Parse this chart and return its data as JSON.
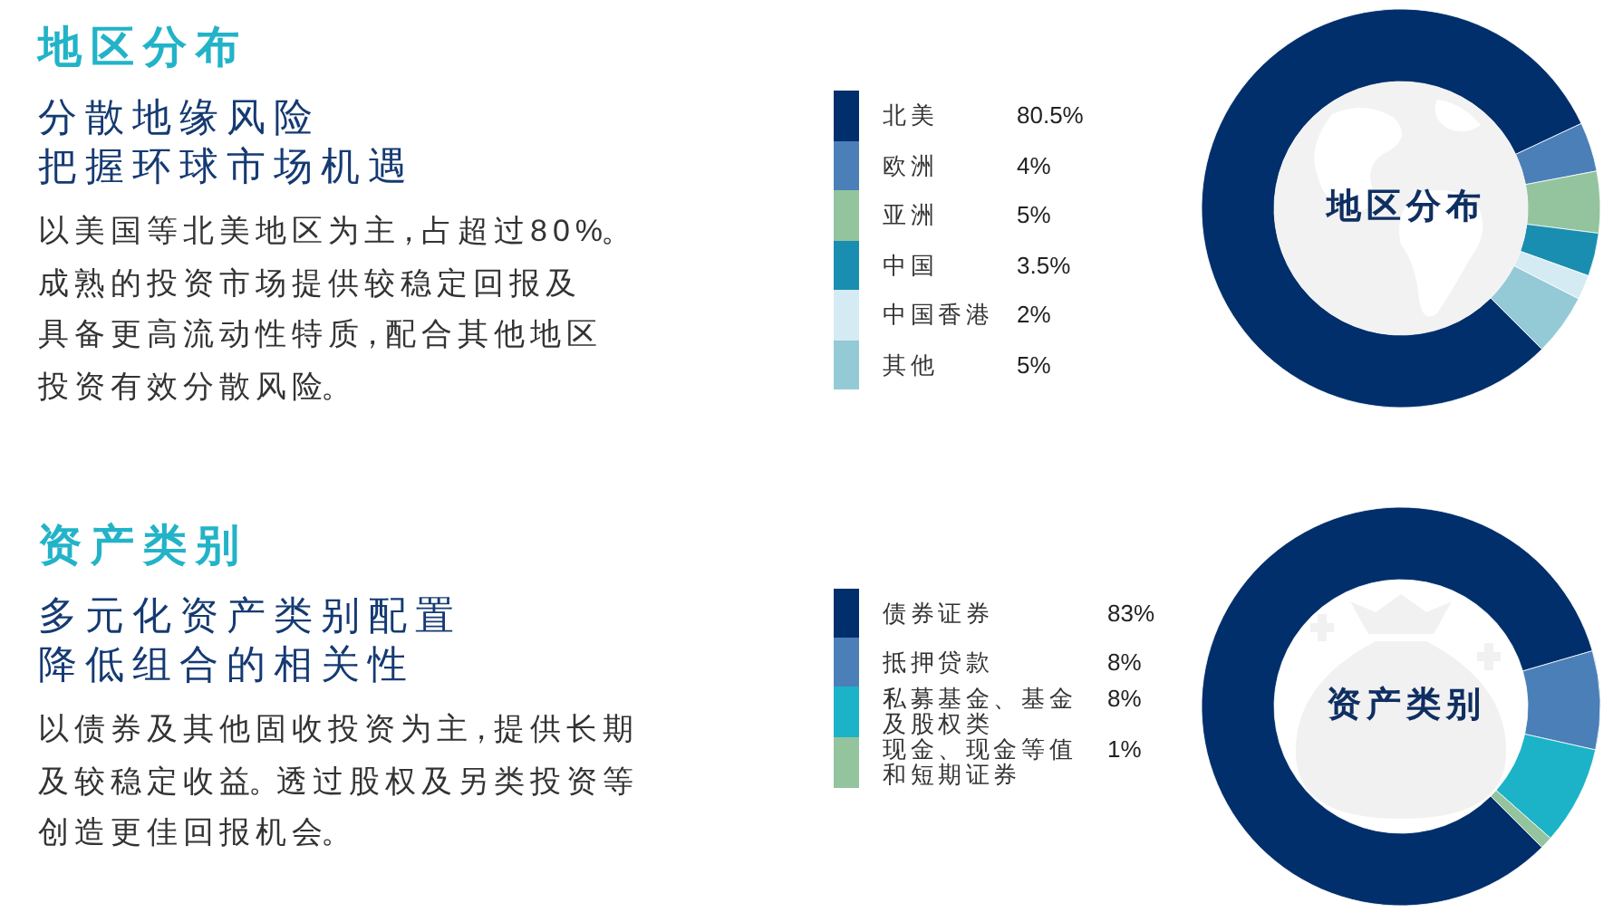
{
  "chart_data": [
    {
      "type": "donut",
      "title": "地区分布",
      "subtitle": "分散地缘风险",
      "categories": [
        "北美",
        "欧洲",
        "亚洲",
        "中国",
        "中国香港",
        "其他"
      ],
      "values": [
        80.5,
        4,
        5,
        3.5,
        2,
        5
      ],
      "value_labels": [
        "80.5%",
        "4%",
        "5%",
        "3.5%",
        "2%",
        "5%"
      ],
      "colors": [
        "#002f6c",
        "#4a7fb8",
        "#93c49e",
        "#1a8eb0",
        "#d5ebf3",
        "#93cad6"
      ],
      "legend": "left",
      "annotations": [
        "把握环球市场机遇",
        "以美国等北美地区为主，占超过80%。",
        "成熟的投资市场提供较稳定回报及具备更高流动性特质，配合其他地区投资有效分散风险。",
        "地区分布"
      ]
    },
    {
      "type": "donut",
      "title": "资产类别",
      "subtitle": "多元化资产类别配置",
      "categories": [
        "债券证券",
        "抵押贷款",
        "私募基金、基金及股权类",
        "现金、现金等值和短期证券"
      ],
      "values": [
        83,
        8,
        8,
        1
      ],
      "value_labels": [
        "83%",
        "8%",
        "8%",
        "1%"
      ],
      "colors": [
        "#002f6c",
        "#4a7fb8",
        "#1cb3c8",
        "#93c49e"
      ],
      "legend": "left",
      "annotations": [
        "降低组合的相关性",
        "以债券及其他固收投资为主，提供长期及较稳定收益。透过股权及另类投资等创造更佳回报机会。",
        "资产类别"
      ]
    }
  ]
}
